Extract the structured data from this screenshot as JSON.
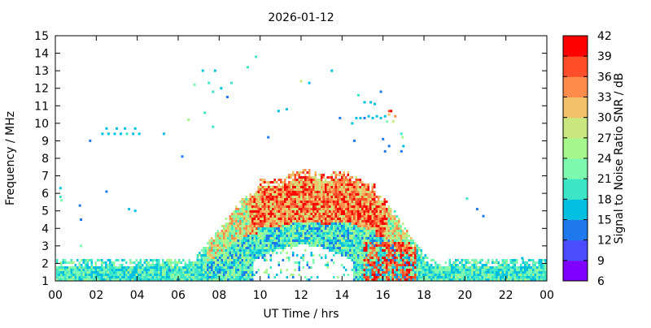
{
  "chart_data": {
    "type": "heatmap",
    "title": "2026-01-12",
    "xlabel": "UT Time / hrs",
    "ylabel": "Frequency / MHz",
    "colorbar_label": "Signal to Noise Ratio SNR / dB",
    "xlim": [
      0,
      24
    ],
    "ylim": [
      1,
      15
    ],
    "x_ticks": [
      "00",
      "02",
      "04",
      "06",
      "08",
      "10",
      "12",
      "14",
      "16",
      "18",
      "20",
      "22",
      "00"
    ],
    "y_ticks": [
      "1",
      "2",
      "3",
      "4",
      "5",
      "6",
      "7",
      "8",
      "9",
      "10",
      "11",
      "12",
      "13",
      "14",
      "15"
    ],
    "colorbar_ticks": [
      "6",
      "9",
      "12",
      "15",
      "18",
      "21",
      "24",
      "27",
      "30",
      "33",
      "36",
      "39",
      "42"
    ],
    "color_levels": [
      "#7f00ff",
      "#4c4cff",
      "#1e78ee",
      "#00bfe0",
      "#3ee6c8",
      "#7dfab0",
      "#a6f78c",
      "#c9e77e",
      "#f2c26b",
      "#ff8c4a",
      "#ff4e2a",
      "#ff0000"
    ],
    "snr_range_db": [
      6,
      42
    ],
    "band": {
      "night_top_mhz": 2.2,
      "day_top_mhz": 7.2,
      "sunrise_hours": [
        6.3,
        9.8
      ],
      "sunset_hours": [
        15.6,
        18.5
      ]
    },
    "features": [
      {
        "t": 0.25,
        "f": 5.8,
        "snr": 20
      },
      {
        "t": 0.25,
        "f": 6.3,
        "snr": 16
      },
      {
        "t": 0.3,
        "f": 5.6,
        "snr": 22
      },
      {
        "t": 1.2,
        "f": 5.3,
        "snr": 14
      },
      {
        "t": 1.25,
        "f": 4.5,
        "snr": 13
      },
      {
        "t": 1.25,
        "f": 3.0,
        "snr": 22
      },
      {
        "t": 1.7,
        "f": 9.0,
        "snr": 13
      },
      {
        "t": 2.3,
        "f": 9.4,
        "snr": 16
      },
      {
        "t": 2.6,
        "f": 9.4,
        "snr": 16
      },
      {
        "t": 2.9,
        "f": 9.4,
        "snr": 17
      },
      {
        "t": 3.2,
        "f": 9.4,
        "snr": 16
      },
      {
        "t": 3.5,
        "f": 9.4,
        "snr": 18
      },
      {
        "t": 3.8,
        "f": 9.4,
        "snr": 16
      },
      {
        "t": 4.1,
        "f": 9.4,
        "snr": 17
      },
      {
        "t": 2.5,
        "f": 9.7,
        "snr": 15
      },
      {
        "t": 3.0,
        "f": 9.7,
        "snr": 15
      },
      {
        "t": 3.4,
        "f": 9.7,
        "snr": 15
      },
      {
        "t": 3.9,
        "f": 9.7,
        "snr": 15
      },
      {
        "t": 5.3,
        "f": 9.4,
        "snr": 15
      },
      {
        "t": 6.2,
        "f": 8.1,
        "snr": 13
      },
      {
        "t": 2.5,
        "f": 6.1,
        "snr": 14
      },
      {
        "t": 3.6,
        "f": 5.1,
        "snr": 17
      },
      {
        "t": 3.9,
        "f": 5.0,
        "snr": 15
      },
      {
        "t": 6.5,
        "f": 10.2,
        "snr": 26
      },
      {
        "t": 6.8,
        "f": 12.2,
        "snr": 22
      },
      {
        "t": 7.2,
        "f": 13.0,
        "snr": 17
      },
      {
        "t": 7.8,
        "f": 13.0,
        "snr": 16
      },
      {
        "t": 7.5,
        "f": 12.3,
        "snr": 20
      },
      {
        "t": 7.7,
        "f": 11.8,
        "snr": 19
      },
      {
        "t": 7.3,
        "f": 10.6,
        "snr": 18
      },
      {
        "t": 7.7,
        "f": 9.8,
        "snr": 18
      },
      {
        "t": 8.1,
        "f": 12.0,
        "snr": 16
      },
      {
        "t": 8.6,
        "f": 12.3,
        "snr": 18
      },
      {
        "t": 8.4,
        "f": 11.5,
        "snr": 14
      },
      {
        "t": 9.4,
        "f": 13.2,
        "snr": 18
      },
      {
        "t": 9.8,
        "f": 13.8,
        "snr": 20
      },
      {
        "t": 10.4,
        "f": 9.2,
        "snr": 13
      },
      {
        "t": 10.9,
        "f": 10.7,
        "snr": 16
      },
      {
        "t": 11.3,
        "f": 10.8,
        "snr": 15
      },
      {
        "t": 12.0,
        "f": 12.4,
        "snr": 28
      },
      {
        "t": 12.4,
        "f": 12.3,
        "snr": 15
      },
      {
        "t": 13.5,
        "f": 13.0,
        "snr": 16
      },
      {
        "t": 14.5,
        "f": 10.0,
        "snr": 15
      },
      {
        "t": 14.7,
        "f": 10.3,
        "snr": 15
      },
      {
        "t": 14.9,
        "f": 10.3,
        "snr": 15
      },
      {
        "t": 15.1,
        "f": 10.3,
        "snr": 14
      },
      {
        "t": 15.3,
        "f": 10.4,
        "snr": 16
      },
      {
        "t": 15.5,
        "f": 10.3,
        "snr": 15
      },
      {
        "t": 15.7,
        "f": 10.4,
        "snr": 15
      },
      {
        "t": 15.9,
        "f": 10.3,
        "snr": 16
      },
      {
        "t": 16.1,
        "f": 10.4,
        "snr": 15
      },
      {
        "t": 14.8,
        "f": 11.6,
        "snr": 18
      },
      {
        "t": 15.1,
        "f": 11.2,
        "snr": 17
      },
      {
        "t": 15.4,
        "f": 11.2,
        "snr": 16
      },
      {
        "t": 15.6,
        "f": 11.1,
        "snr": 16
      },
      {
        "t": 15.9,
        "f": 11.8,
        "snr": 14
      },
      {
        "t": 16.3,
        "f": 10.7,
        "snr": 36
      },
      {
        "t": 16.4,
        "f": 10.7,
        "snr": 40
      },
      {
        "t": 16.6,
        "f": 10.4,
        "snr": 34
      },
      {
        "t": 16.5,
        "f": 10.1,
        "snr": 28
      },
      {
        "t": 16.3,
        "f": 10.5,
        "snr": 30
      },
      {
        "t": 16.2,
        "f": 10.1,
        "snr": 22
      },
      {
        "t": 16.0,
        "f": 9.1,
        "snr": 14
      },
      {
        "t": 16.1,
        "f": 8.4,
        "snr": 13
      },
      {
        "t": 16.3,
        "f": 8.7,
        "snr": 13
      },
      {
        "t": 16.9,
        "f": 9.4,
        "snr": 20
      },
      {
        "t": 16.95,
        "f": 9.2,
        "snr": 26
      },
      {
        "t": 17.0,
        "f": 8.7,
        "snr": 16
      },
      {
        "t": 16.9,
        "f": 8.4,
        "snr": 14
      },
      {
        "t": 14.6,
        "f": 9.0,
        "snr": 13
      },
      {
        "t": 13.9,
        "f": 10.3,
        "snr": 14
      },
      {
        "t": 20.1,
        "f": 5.7,
        "snr": 20
      },
      {
        "t": 20.6,
        "f": 5.1,
        "snr": 14
      },
      {
        "t": 20.9,
        "f": 4.7,
        "snr": 13
      },
      {
        "t": 5.6,
        "f": 1.6,
        "snr": 14
      },
      {
        "t": 4.4,
        "f": 1.7,
        "snr": 15
      },
      {
        "t": 22.8,
        "f": 2.3,
        "snr": 15
      }
    ]
  }
}
